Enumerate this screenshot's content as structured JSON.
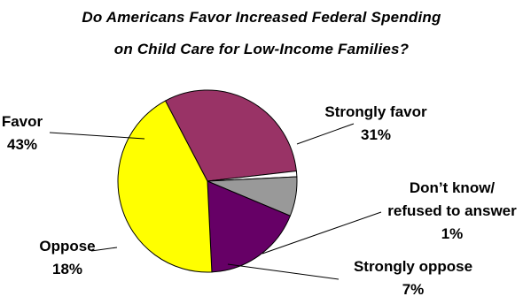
{
  "chart_data": {
    "type": "pie",
    "title_lines": [
      "Do Americans Favor Increased Federal Spending",
      "on Child Care for Low-Income Families?"
    ],
    "slices": [
      {
        "label_lines": [
          "Strongly favor",
          "31%"
        ],
        "name": "Strongly favor",
        "value": 31,
        "color": "#993366"
      },
      {
        "label_lines": [
          "Don’t know/",
          "refused to answer",
          "1%"
        ],
        "name": "Don’t know/refused to answer",
        "value": 1,
        "color": "#ffffff"
      },
      {
        "label_lines": [
          "Strongly oppose",
          "7%"
        ],
        "name": "Strongly oppose",
        "value": 7,
        "color": "#999999"
      },
      {
        "label_lines": [
          "Oppose",
          "18%"
        ],
        "name": "Oppose",
        "value": 18,
        "color": "#660066"
      },
      {
        "label_lines": [
          "Favor",
          "43%"
        ],
        "name": "Favor",
        "value": 43,
        "color": "#ffff00"
      }
    ]
  }
}
